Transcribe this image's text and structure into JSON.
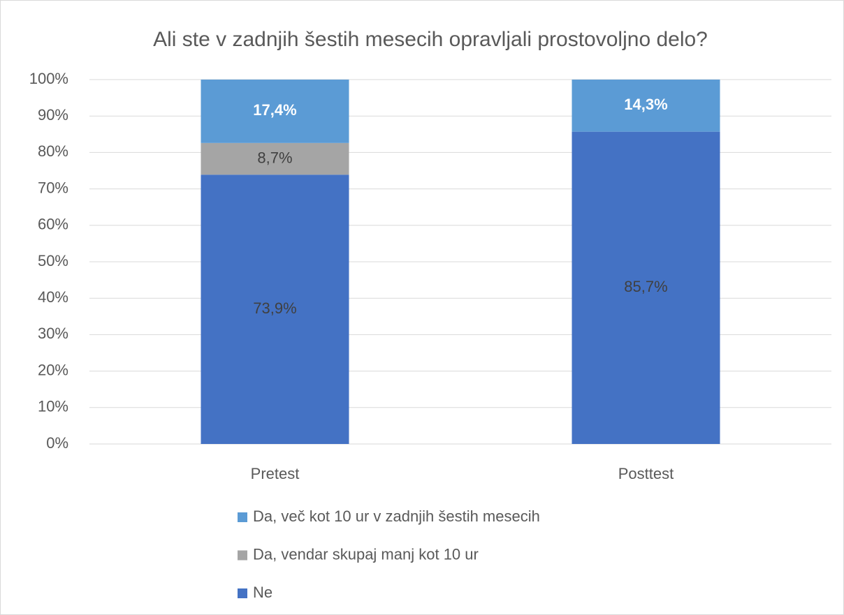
{
  "chart_data": {
    "type": "stacked_bar",
    "title": "Ali ste v zadnjih šestih mesecih opravljali prostovoljno delo?",
    "categories": [
      "Pretest",
      "Posttest"
    ],
    "series": [
      {
        "name": "Ne",
        "color": "#4472c4",
        "label_color": "#404040",
        "values": [
          73.9,
          85.7
        ],
        "value_labels": [
          "73,9%",
          "85,7%"
        ]
      },
      {
        "name": "Da, vendar skupaj manj kot 10 ur",
        "color": "#a5a5a5",
        "label_color": "#404040",
        "values": [
          8.7,
          0
        ],
        "value_labels": [
          "8,7%",
          null
        ]
      },
      {
        "name": "Da, več kot 10 ur v zadnjih šestih mesecih",
        "color": "#5b9bd5",
        "label_color": "#ffffff",
        "values": [
          17.4,
          14.3
        ],
        "value_labels": [
          "17,4%",
          "14,3%"
        ]
      }
    ],
    "ylim": [
      0,
      100
    ],
    "yticks": [
      {
        "value": 0,
        "label": "0%"
      },
      {
        "value": 10,
        "label": "10%"
      },
      {
        "value": 20,
        "label": "20%"
      },
      {
        "value": 30,
        "label": "30%"
      },
      {
        "value": 40,
        "label": "40%"
      },
      {
        "value": 50,
        "label": "50%"
      },
      {
        "value": 60,
        "label": "60%"
      },
      {
        "value": 70,
        "label": "70%"
      },
      {
        "value": 80,
        "label": "80%"
      },
      {
        "value": 90,
        "label": "90%"
      },
      {
        "value": 100,
        "label": "100%"
      }
    ],
    "grid": true
  }
}
